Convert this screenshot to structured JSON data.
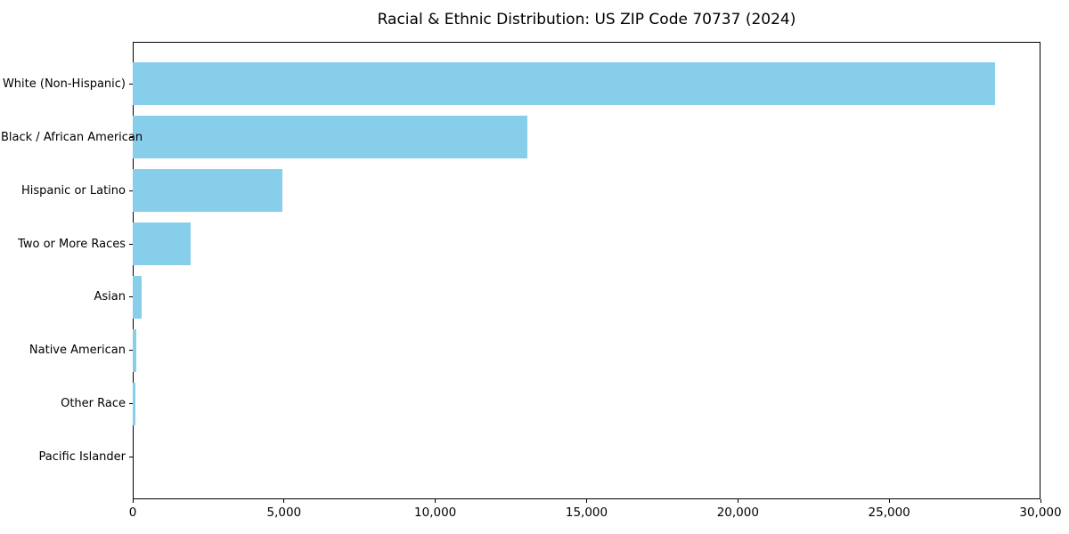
{
  "chart_data": {
    "type": "bar",
    "orientation": "horizontal",
    "title": "Racial & Ethnic Distribution: US ZIP Code 70737 (2024)",
    "categories": [
      "White (Non-Hispanic)",
      "Black / African American",
      "Hispanic or Latino",
      "Two or More Races",
      "Asian",
      "Native American",
      "Other Race",
      "Pacific Islander"
    ],
    "values": [
      28500,
      13050,
      4940,
      1910,
      280,
      120,
      100,
      0
    ],
    "xlabel": "",
    "ylabel": "",
    "xlim": [
      0,
      30000
    ],
    "xticks": [
      0,
      5000,
      10000,
      15000,
      20000,
      25000,
      30000
    ],
    "xtick_labels": [
      "0",
      "5,000",
      "10,000",
      "15,000",
      "20,000",
      "25,000",
      "30,000"
    ],
    "bar_color": "#87CEEB",
    "axis_color": "#000000",
    "grid": false,
    "legend": null
  }
}
